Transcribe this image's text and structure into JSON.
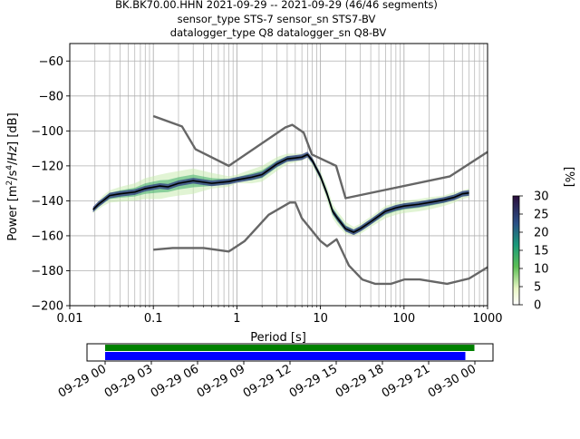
{
  "header": {
    "title_line1": "BK.BK70.00.HHN   2021-09-29 -- 2021-09-29  (46/46 segments)",
    "title_line2": "sensor_type STS-7 sensor_sn STS7-BV",
    "title_line3": "datalogger_type Q8 datalogger_sn Q8-BV"
  },
  "colorbar": {
    "label": "[%]",
    "ticks": [
      "0",
      "5",
      "10",
      "15",
      "20",
      "25",
      "30"
    ],
    "range": [
      0,
      30
    ]
  },
  "timeline": {
    "ticks": [
      "09-29 00",
      "09-29 03",
      "09-29 06",
      "09-29 09",
      "09-29 12",
      "09-29 15",
      "09-29 18",
      "09-29 21",
      "09-30 00"
    ],
    "data_coverage": {
      "start_hours": 0,
      "end_hours": 23.5,
      "color": "#008000"
    },
    "psd_coverage": {
      "start_hours": 0,
      "end_hours": 23.5,
      "color": "#0000ff"
    }
  },
  "chart_data": {
    "type": "line",
    "xscale": "log",
    "xlabel": "Period [s]",
    "ylabel": "Power [m²/s⁴/Hz] [dB]",
    "xlim": [
      0.01,
      1000
    ],
    "ylim": [
      -200,
      -50
    ],
    "x_ticks": [
      "0.01",
      "0.1",
      "1",
      "10",
      "100",
      "1000"
    ],
    "y_ticks": [
      "−200",
      "−180",
      "−160",
      "−140",
      "−120",
      "−100",
      "−80",
      "−60"
    ],
    "grid": true,
    "series": [
      {
        "role": "high-noise-model",
        "color": "#666666",
        "x": [
          0.1,
          0.22,
          0.32,
          0.8,
          3.8,
          4.6,
          6.3,
          7.9,
          15.4,
          20,
          354.8,
          1000
        ],
        "y": [
          -91.5,
          -97.4,
          -110.5,
          -120,
          -98,
          -96.5,
          -101,
          -113.5,
          -120,
          -138.5,
          -126,
          -112
        ]
      },
      {
        "role": "low-noise-model",
        "color": "#666666",
        "x": [
          0.1,
          0.17,
          0.4,
          0.8,
          1.24,
          2.4,
          4.3,
          5,
          6,
          10,
          12,
          15.6,
          21.9,
          31.6,
          45,
          70,
          101,
          154,
          328,
          600,
          1000
        ],
        "y": [
          -168,
          -167,
          -167,
          -169,
          -163,
          -148,
          -141,
          -141,
          -150,
          -163,
          -166,
          -162,
          -177,
          -185,
          -187.5,
          -187.5,
          -185,
          -185,
          -187.5,
          -184.5,
          -178
        ]
      },
      {
        "role": "mean-psd",
        "color": "#000000",
        "x": [
          0.019,
          0.022,
          0.025,
          0.03,
          0.04,
          0.06,
          0.08,
          0.12,
          0.15,
          0.2,
          0.3,
          0.5,
          0.8,
          1,
          1.5,
          2,
          3,
          4,
          5,
          6,
          7,
          8,
          10,
          12,
          14,
          16,
          20,
          25,
          30,
          40,
          60,
          80,
          100,
          150,
          200,
          300,
          400,
          500,
          600
        ],
        "y": [
          -145,
          -142,
          -140,
          -137,
          -136,
          -135,
          -133,
          -131.5,
          -132,
          -130,
          -128.5,
          -130,
          -129,
          -128,
          -126.5,
          -125,
          -119,
          -116,
          -115.5,
          -115,
          -113.5,
          -117,
          -126,
          -136,
          -146,
          -150,
          -156,
          -158,
          -156,
          -152,
          -146,
          -144,
          -143,
          -142,
          -141,
          -139.5,
          -138,
          -136,
          -135.5
        ]
      }
    ],
    "heatmap_band": {
      "upper_y": [
        -144,
        -140,
        -137,
        -134,
        -132,
        -130,
        -127,
        -125,
        -124,
        -123,
        -121.5,
        -124,
        -126,
        -125,
        -122,
        -120,
        -115,
        -113,
        -113,
        -113,
        -112,
        -115,
        -123,
        -132,
        -142,
        -146,
        -152,
        -155,
        -153,
        -149,
        -143,
        -141,
        -140,
        -139,
        -138,
        -137,
        -135,
        -134,
        -133
      ],
      "lower_y": [
        -147,
        -145,
        -143,
        -141,
        -140.5,
        -140,
        -139,
        -139,
        -138,
        -137,
        -136,
        -133,
        -132,
        -130,
        -130,
        -129,
        -123,
        -119,
        -118,
        -117,
        -115.5,
        -120,
        -129,
        -140,
        -150,
        -154,
        -159,
        -160,
        -159,
        -155,
        -150,
        -148,
        -147,
        -146,
        -145,
        -143,
        -141,
        -139,
        -138
      ]
    }
  }
}
